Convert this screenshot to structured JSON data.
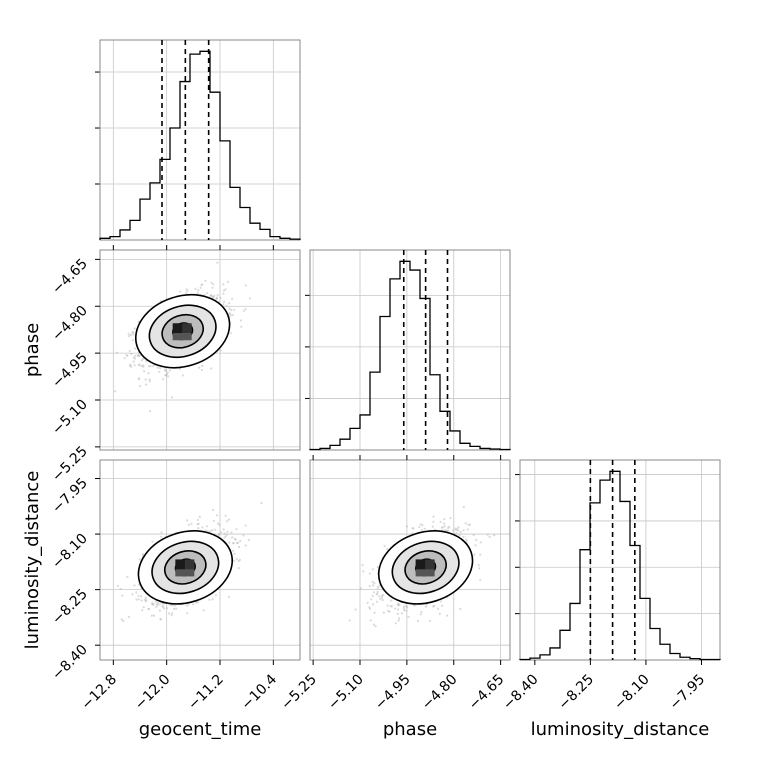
{
  "chart_data": {
    "type": "corner",
    "parameters": [
      {
        "key": "geocent_time",
        "label": "geocent_time",
        "range": [
          -13.0,
          -10.0
        ],
        "ticks": [
          -12.8,
          -12.0,
          -11.2,
          -10.4
        ],
        "tick_labels": [
          "−12.8",
          "−12.0",
          "−11.2",
          "−10.4"
        ],
        "quantiles": [
          -12.07,
          -11.72,
          -11.37
        ],
        "median": -11.72,
        "hist_values": [
          0.3,
          0.6,
          1.8,
          3.5,
          7.3,
          10.2,
          14.4,
          20.0,
          28.3,
          33.2,
          33.7,
          26.4,
          17.7,
          9.4,
          5.8,
          3.0,
          1.9,
          0.6,
          0.3,
          0.15
        ]
      },
      {
        "key": "phase",
        "label": "phase",
        "range": [
          -5.26,
          -4.62
        ],
        "ticks": [
          -5.25,
          -5.1,
          -4.95,
          -4.8,
          -4.65
        ],
        "tick_labels": [
          "−5.25",
          "−5.10",
          "−4.95",
          "−4.80",
          "−4.65"
        ],
        "quantiles": [
          -4.96,
          -4.89,
          -4.82
        ],
        "median": -4.89,
        "hist_values": [
          0.1,
          0.3,
          0.9,
          2.1,
          4.2,
          6.8,
          15.1,
          25.9,
          33.2,
          36.6,
          34.9,
          29.4,
          14.6,
          7.5,
          3.7,
          1.3,
          0.7,
          0.3,
          0.2,
          0.1
        ]
      },
      {
        "key": "luminosity_distance",
        "label": "luminosity_distance",
        "range": [
          -8.44,
          -7.9
        ],
        "ticks": [
          -8.4,
          -8.25,
          -8.1,
          -7.95
        ],
        "tick_labels": [
          "−8.40",
          "−8.25",
          "−8.10",
          "−7.95"
        ],
        "quantiles": [
          -8.25,
          -8.19,
          -8.13
        ],
        "median": -8.19,
        "hist_values": [
          0.1,
          0.4,
          1.1,
          2.6,
          6.4,
          12.2,
          23.8,
          33.9,
          38.8,
          40.7,
          34.2,
          24.7,
          13.3,
          6.8,
          3.4,
          1.4,
          0.6,
          0.3,
          0.1,
          0.1
        ]
      }
    ],
    "pairs": [
      {
        "x": "geocent_time",
        "y": "phase",
        "center": [
          -11.76,
          -4.88
        ]
      },
      {
        "x": "geocent_time",
        "y": "luminosity_distance",
        "center": [
          -11.72,
          -8.19
        ]
      },
      {
        "x": "phase",
        "y": "luminosity_distance",
        "center": [
          -4.89,
          -8.19
        ]
      }
    ],
    "grid": true,
    "title": "",
    "colors": {
      "hist": "#000000",
      "scatter": "#bbbbbb",
      "grid": "#c7c7c7"
    }
  }
}
